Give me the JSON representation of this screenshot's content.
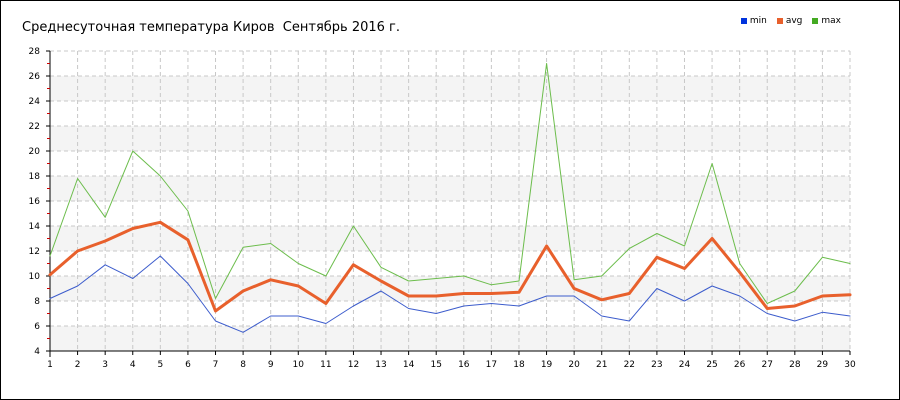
{
  "chart_data": {
    "type": "line",
    "title": "Среднесуточная температура Киров  Сентябрь 2016 г.",
    "xlabel": "",
    "ylabel": "",
    "x": [
      1,
      2,
      3,
      4,
      5,
      6,
      7,
      8,
      9,
      10,
      11,
      12,
      13,
      14,
      15,
      16,
      17,
      18,
      19,
      20,
      21,
      22,
      23,
      24,
      25,
      26,
      27,
      28,
      29,
      30
    ],
    "xlim": [
      1,
      30
    ],
    "ylim": [
      4,
      28
    ],
    "yticks": [
      4,
      6,
      8,
      10,
      12,
      14,
      16,
      18,
      20,
      22,
      24,
      26,
      28
    ],
    "grid": true,
    "legend_position": "top-right",
    "series": [
      {
        "name": "min",
        "color": "#3c5ccc",
        "swatch": "#0033dd",
        "values": [
          8.2,
          9.2,
          10.9,
          9.8,
          11.6,
          9.4,
          6.4,
          5.5,
          6.8,
          6.8,
          6.2,
          7.6,
          8.8,
          7.4,
          7.0,
          7.6,
          7.8,
          7.6,
          8.4,
          8.4,
          6.8,
          6.4,
          9.0,
          8.0,
          9.2,
          8.4,
          7.0,
          6.4,
          7.1,
          6.8
        ]
      },
      {
        "name": "avg",
        "color": "#e8602c",
        "swatch": "#e8602c",
        "values": [
          10.1,
          12.0,
          12.8,
          13.8,
          14.3,
          12.9,
          7.2,
          8.8,
          9.7,
          9.2,
          7.8,
          10.9,
          9.6,
          8.4,
          8.4,
          8.6,
          8.6,
          8.7,
          12.4,
          9.0,
          8.1,
          8.6,
          11.5,
          10.6,
          13.0,
          10.3,
          7.4,
          7.6,
          8.4,
          8.5
        ]
      },
      {
        "name": "max",
        "color": "#6cbd4c",
        "swatch": "#44aa22",
        "values": [
          11.6,
          17.8,
          14.7,
          20.0,
          18.0,
          15.2,
          8.2,
          12.3,
          12.6,
          11.0,
          10.0,
          14.0,
          10.7,
          9.6,
          9.8,
          10.0,
          9.3,
          9.6,
          27.0,
          9.7,
          10.0,
          12.2,
          13.4,
          12.4,
          19.0,
          11.0,
          7.8,
          8.8,
          11.5,
          11.0
        ]
      }
    ]
  }
}
